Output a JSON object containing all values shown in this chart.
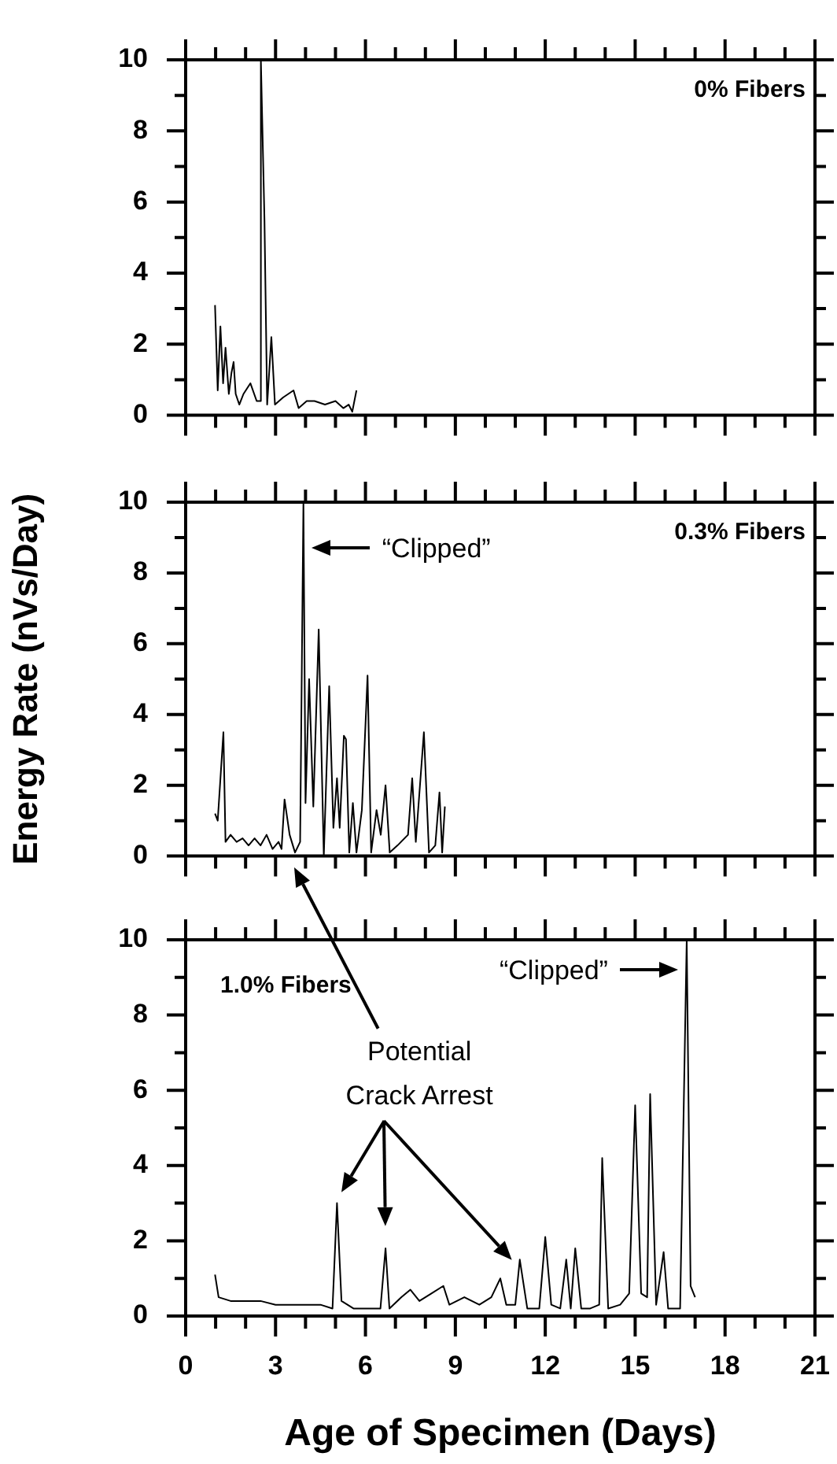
{
  "chart_data": [
    {
      "type": "line",
      "title": "0% Fibers",
      "color": "#000000",
      "marker": "none",
      "line_style": "solid",
      "tick_labels": "y",
      "x": [
        0.98,
        1.07,
        1.16,
        1.25,
        1.33,
        1.44,
        1.53,
        1.6,
        1.67,
        1.79,
        1.93,
        2.16,
        2.37,
        2.47,
        2.51,
        2.63,
        2.72,
        2.86,
        2.98,
        3.25,
        3.6,
        3.77,
        4.04,
        4.3,
        4.65,
        5.0,
        5.26,
        5.44,
        5.56,
        5.7
      ],
      "values": [
        3.1,
        0.7,
        2.5,
        0.9,
        1.9,
        0.6,
        1.2,
        1.5,
        0.6,
        0.3,
        0.6,
        0.9,
        0.4,
        0.4,
        10,
        5.5,
        0.3,
        2.2,
        0.3,
        0.5,
        0.7,
        0.2,
        0.4,
        0.4,
        0.3,
        0.4,
        0.2,
        0.3,
        0.1,
        0.7
      ],
      "xlim": [
        0,
        21
      ],
      "xticks": [
        0,
        {
          "value": 1,
          "label": null
        },
        {
          "value": 2,
          "label": null
        },
        3,
        {
          "value": 4,
          "label": null
        },
        {
          "value": 5,
          "label": null
        },
        6,
        {
          "value": 7,
          "label": null
        },
        {
          "value": 8,
          "label": null
        },
        9,
        {
          "value": 10,
          "label": null
        },
        {
          "value": 11,
          "label": null
        },
        12,
        {
          "value": 13,
          "label": null
        },
        {
          "value": 14,
          "label": null
        },
        15,
        {
          "value": 16,
          "label": null
        },
        {
          "value": 17,
          "label": null
        },
        18,
        {
          "value": 19,
          "label": null
        },
        {
          "value": 20,
          "label": null
        },
        21
      ],
      "ylim": [
        0,
        10
      ],
      "yticks": [
        0,
        {
          "value": 1,
          "label": null
        },
        2,
        {
          "value": 3,
          "label": null
        },
        4,
        {
          "value": 5,
          "label": null
        },
        6,
        {
          "value": 7,
          "label": null
        },
        8,
        {
          "value": 9,
          "label": null
        },
        10
      ]
    },
    {
      "type": "line",
      "title": "0.3% Fibers",
      "ylabel": "Energy Rate (nVs/Day)",
      "color": "#000000",
      "marker": "none",
      "line_style": "solid",
      "tick_labels": "y",
      "x": [
        0.98,
        1.07,
        1.26,
        1.33,
        1.5,
        1.7,
        1.9,
        2.1,
        2.3,
        2.5,
        2.7,
        2.9,
        3.1,
        3.2,
        3.3,
        3.47,
        3.65,
        3.82,
        3.93,
        4.0,
        4.12,
        4.26,
        4.44,
        4.61,
        4.79,
        4.93,
        5.05,
        5.14,
        5.28,
        5.35,
        5.46,
        5.58,
        5.7,
        5.88,
        6.07,
        6.19,
        6.37,
        6.51,
        6.67,
        6.81,
        7.07,
        7.42,
        7.56,
        7.68,
        7.95,
        8.12,
        8.33,
        8.47,
        8.56,
        8.65
      ],
      "values": [
        1.2,
        1.0,
        3.5,
        0.4,
        0.6,
        0.4,
        0.5,
        0.3,
        0.5,
        0.3,
        0.6,
        0.2,
        0.4,
        0.2,
        1.6,
        0.6,
        0.1,
        0.4,
        10,
        1.5,
        5.0,
        1.4,
        6.4,
        0.0,
        4.8,
        0.8,
        2.2,
        0.8,
        3.4,
        3.3,
        0.1,
        1.5,
        0.1,
        1.3,
        5.1,
        0.1,
        1.3,
        0.6,
        2.0,
        0.1,
        0.3,
        0.6,
        2.2,
        0.4,
        3.5,
        0.1,
        0.3,
        1.8,
        0.1,
        1.4
      ],
      "annotations": [
        {
          "text": "“Clipped”",
          "x": 3.93,
          "y": 8.7
        }
      ],
      "xlim": [
        0,
        21
      ],
      "xticks": [
        0,
        {
          "value": 1,
          "label": null
        },
        {
          "value": 2,
          "label": null
        },
        3,
        {
          "value": 4,
          "label": null
        },
        {
          "value": 5,
          "label": null
        },
        6,
        {
          "value": 7,
          "label": null
        },
        {
          "value": 8,
          "label": null
        },
        9,
        {
          "value": 10,
          "label": null
        },
        {
          "value": 11,
          "label": null
        },
        12,
        {
          "value": 13,
          "label": null
        },
        {
          "value": 14,
          "label": null
        },
        15,
        {
          "value": 16,
          "label": null
        },
        {
          "value": 17,
          "label": null
        },
        18,
        {
          "value": 19,
          "label": null
        },
        {
          "value": 20,
          "label": null
        },
        21
      ],
      "ylim": [
        0,
        10
      ],
      "yticks": [
        0,
        {
          "value": 1,
          "label": null
        },
        2,
        {
          "value": 3,
          "label": null
        },
        4,
        {
          "value": 5,
          "label": null
        },
        6,
        {
          "value": 7,
          "label": null
        },
        8,
        {
          "value": 9,
          "label": null
        },
        10
      ]
    },
    {
      "type": "line",
      "title": "1.0% Fibers",
      "xlabel": "Age of Specimen (Days)",
      "color": "#000000",
      "marker": "none",
      "line_style": "solid",
      "x": [
        0.98,
        1.1,
        1.5,
        2,
        2.5,
        3,
        3.5,
        4,
        4.5,
        4.9,
        5.05,
        5.2,
        5.6,
        6,
        6.5,
        6.67,
        6.8,
        7.2,
        7.5,
        7.8,
        8.2,
        8.6,
        8.8,
        9.3,
        9.8,
        10.2,
        10.5,
        10.7,
        11.0,
        11.15,
        11.4,
        11.8,
        12.0,
        12.2,
        12.5,
        12.7,
        12.85,
        13.0,
        13.2,
        13.5,
        13.8,
        13.9,
        14.1,
        14.5,
        14.8,
        15.0,
        15.2,
        15.4,
        15.5,
        15.7,
        15.95,
        16.1,
        16.5,
        16.72,
        16.85,
        17.0
      ],
      "values": [
        1.1,
        0.5,
        0.4,
        0.4,
        0.4,
        0.3,
        0.3,
        0.3,
        0.3,
        0.2,
        3.0,
        0.4,
        0.2,
        0.2,
        0.2,
        1.8,
        0.2,
        0.5,
        0.7,
        0.4,
        0.6,
        0.8,
        0.3,
        0.5,
        0.3,
        0.5,
        1.0,
        0.3,
        0.3,
        1.5,
        0.2,
        0.2,
        2.1,
        0.3,
        0.2,
        1.5,
        0.2,
        1.8,
        0.2,
        0.2,
        0.3,
        4.2,
        0.2,
        0.3,
        0.6,
        5.6,
        0.6,
        0.5,
        5.9,
        0.3,
        1.7,
        0.2,
        0.2,
        10,
        0.8,
        0.5
      ],
      "annotations": [
        {
          "text": "“Clipped”",
          "x": 16.72,
          "y": 9.2
        },
        "Potential Crack Arrest"
      ],
      "xlim": [
        0,
        21
      ],
      "xticks": [
        0,
        {
          "value": 1,
          "label": null
        },
        {
          "value": 2,
          "label": null
        },
        3,
        {
          "value": 4,
          "label": null
        },
        {
          "value": 5,
          "label": null
        },
        6,
        {
          "value": 7,
          "label": null
        },
        {
          "value": 8,
          "label": null
        },
        9,
        {
          "value": 10,
          "label": null
        },
        {
          "value": 11,
          "label": null
        },
        12,
        {
          "value": 13,
          "label": null
        },
        {
          "value": 14,
          "label": null
        },
        15,
        {
          "value": 16,
          "label": null
        },
        {
          "value": 17,
          "label": null
        },
        18,
        {
          "value": 19,
          "label": null
        },
        {
          "value": 20,
          "label": null
        },
        21
      ],
      "ylim": [
        0,
        10
      ],
      "yticks": [
        0,
        {
          "value": 1,
          "label": null
        },
        2,
        {
          "value": 3,
          "label": null
        },
        4,
        {
          "value": 5,
          "label": null
        },
        6,
        {
          "value": 7,
          "label": null
        },
        8,
        {
          "value": 9,
          "label": null
        },
        10
      ]
    }
  ]
}
